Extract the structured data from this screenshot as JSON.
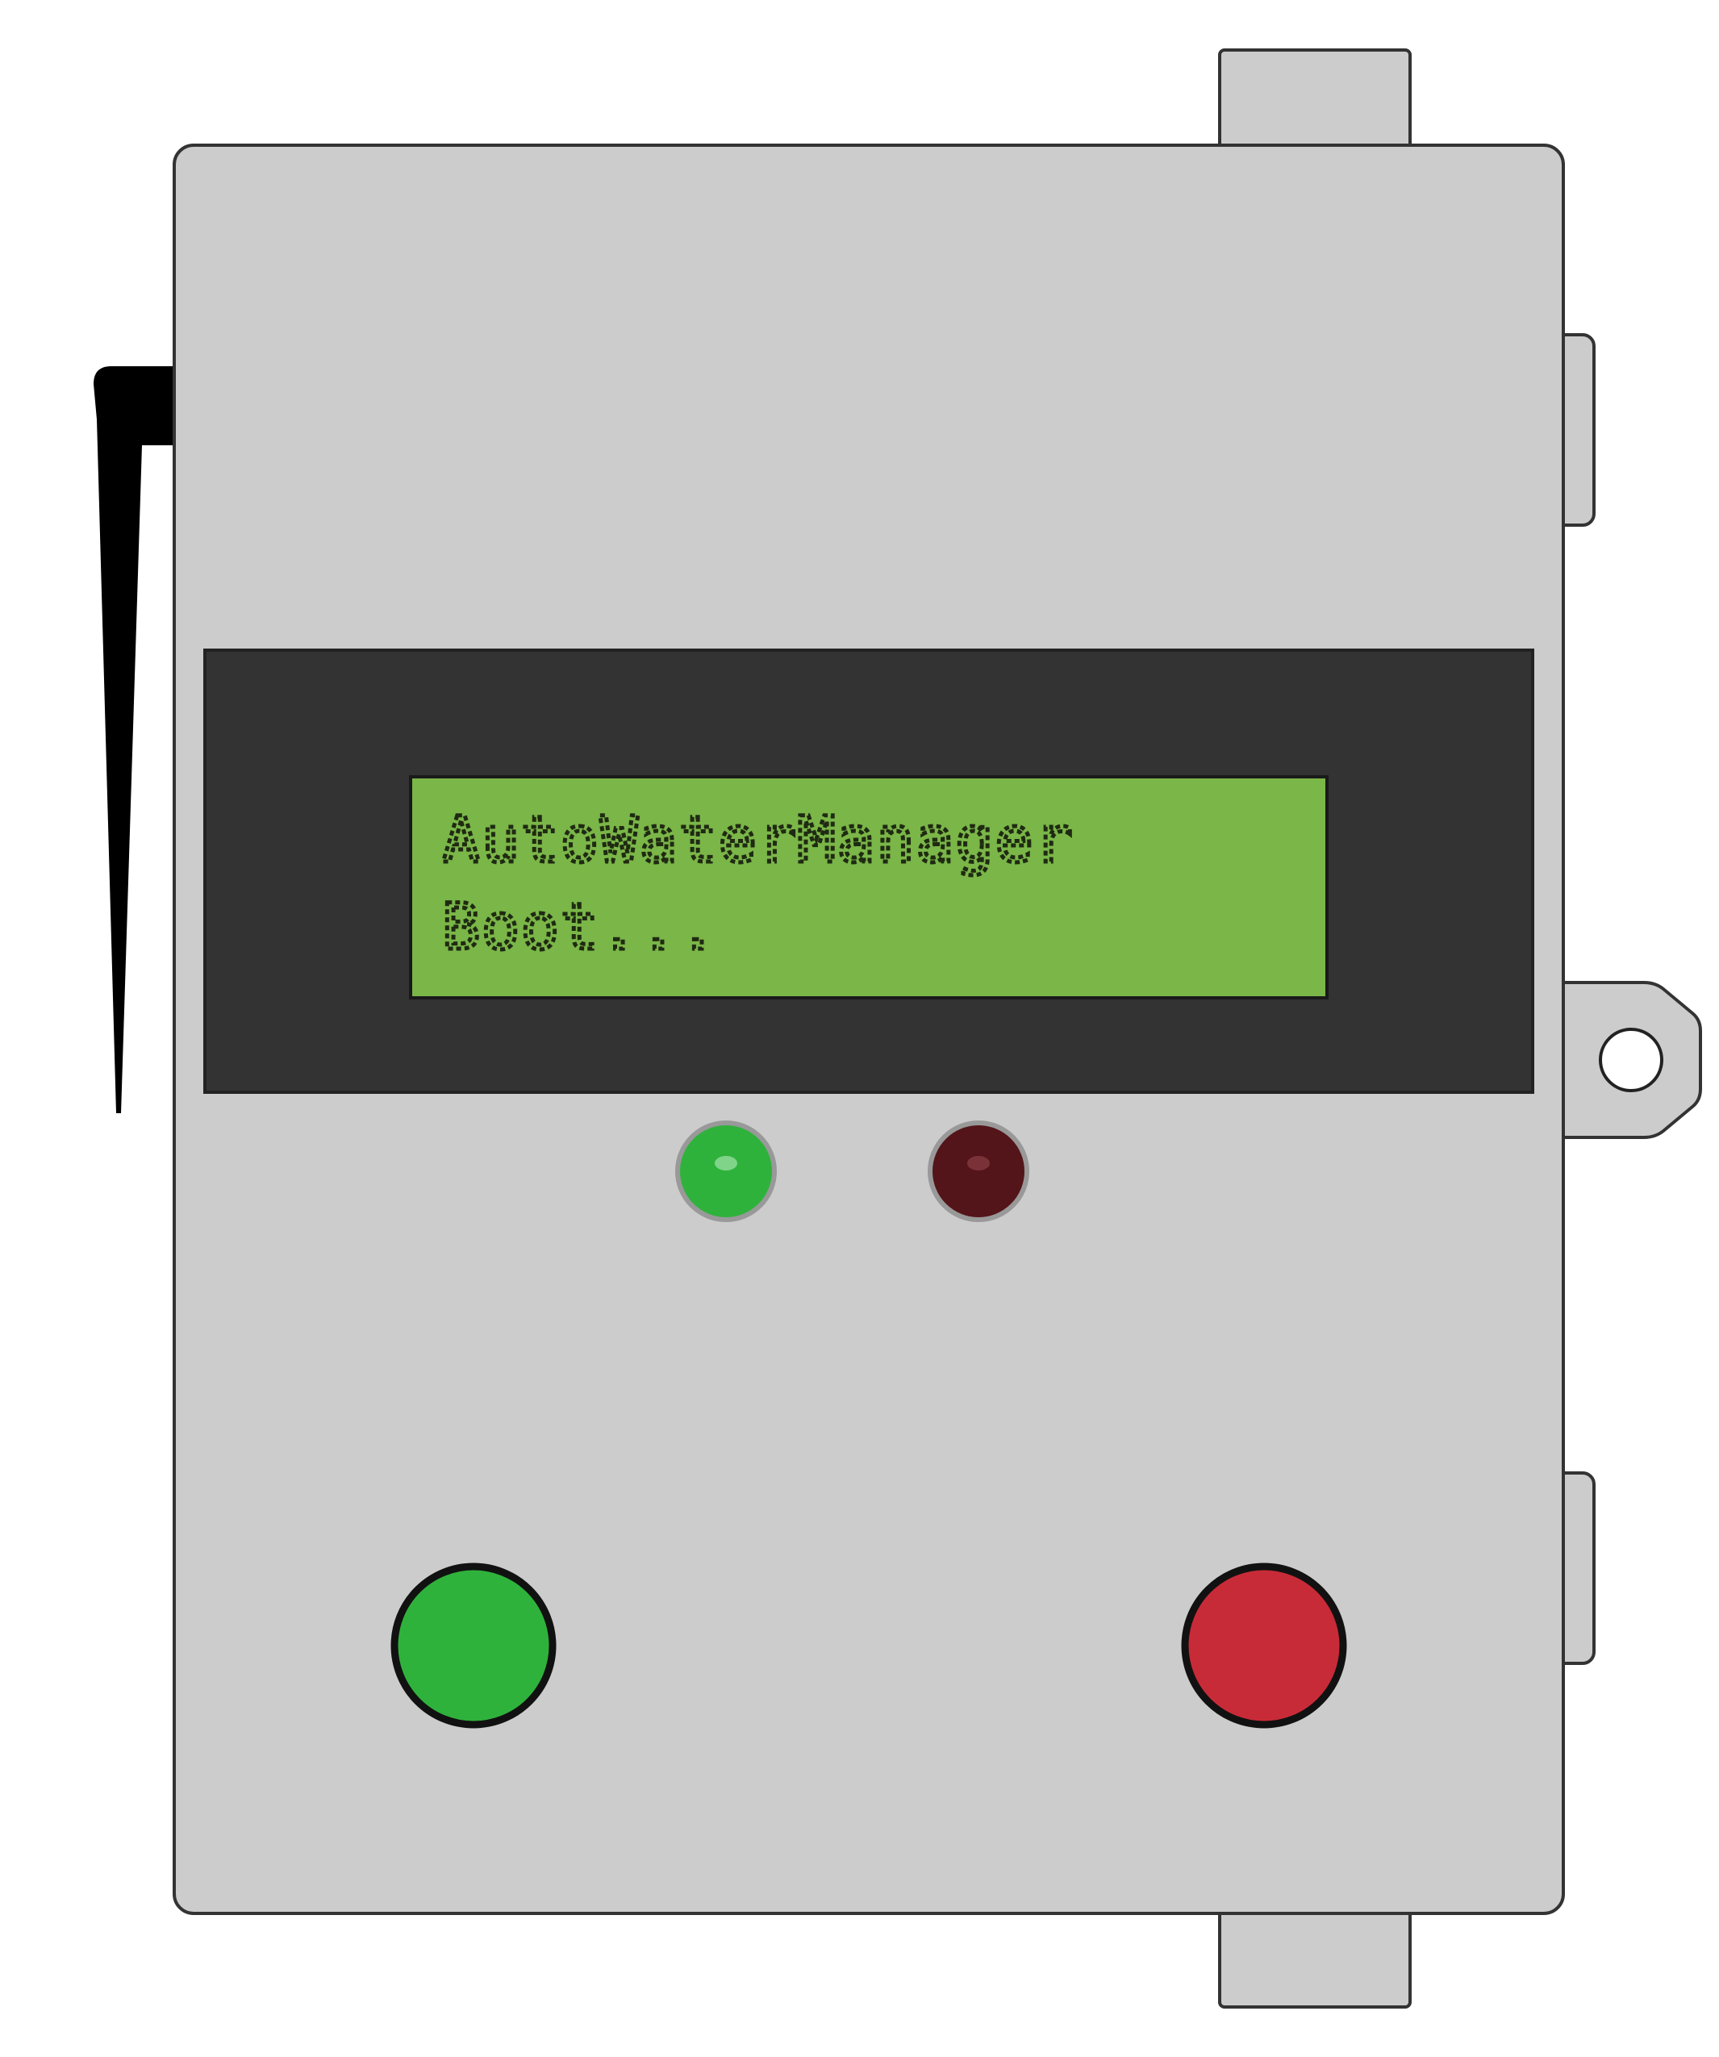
{
  "device": {
    "lcd": {
      "line1": "AutoWaterManager",
      "line2": "Boot..."
    },
    "indicators": [
      {
        "name": "status-led-green",
        "state": "on",
        "color": "#2fb23c"
      },
      {
        "name": "status-led-red",
        "state": "off",
        "color": "#531519"
      }
    ],
    "buttons": [
      {
        "name": "start-button",
        "color": "#2fb23c"
      },
      {
        "name": "stop-button",
        "color": "#c82b38"
      }
    ],
    "colors": {
      "enclosure": "#cccccc",
      "bezel": "#333333",
      "lcd_background": "#7ab648",
      "antenna": "#000000"
    }
  }
}
